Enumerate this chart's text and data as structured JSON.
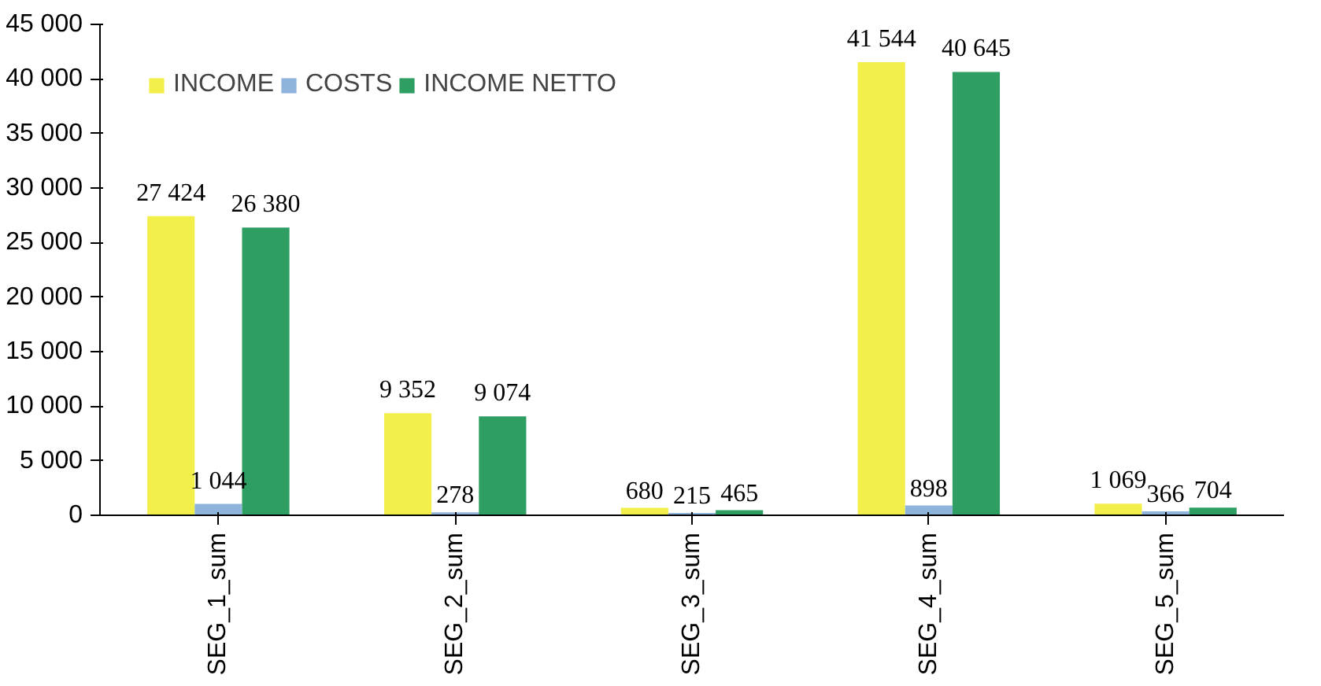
{
  "chart_data": {
    "type": "bar",
    "categories": [
      "SEG_1_sum",
      "SEG_2_sum",
      "SEG_3_sum",
      "SEG_4_sum",
      "SEG_5_sum"
    ],
    "series": [
      {
        "name": "INCOME",
        "color": "#f2ee4a",
        "values": [
          27424,
          9352,
          680,
          41544,
          1069
        ],
        "value_labels": [
          "27 424",
          "9 352",
          "680",
          "41 544",
          "1 069"
        ]
      },
      {
        "name": "COSTS",
        "color": "#8fb4dc",
        "values": [
          1044,
          278,
          215,
          898,
          366
        ],
        "value_labels": [
          "1 044",
          "278",
          "215",
          "898",
          "366"
        ]
      },
      {
        "name": "INCOME NETTO",
        "color": "#2e9e63",
        "values": [
          26380,
          9074,
          465,
          40645,
          704
        ],
        "value_labels": [
          "26 380",
          "9 074",
          "465",
          "40 645",
          "704"
        ]
      }
    ],
    "ylim": [
      0,
      45000
    ],
    "yticks": [
      {
        "value": 0,
        "label": "0"
      },
      {
        "value": 5000,
        "label": "5 000"
      },
      {
        "value": 10000,
        "label": "10 000"
      },
      {
        "value": 15000,
        "label": "15 000"
      },
      {
        "value": 20000,
        "label": "20 000"
      },
      {
        "value": 25000,
        "label": "25 000"
      },
      {
        "value": 30000,
        "label": "30 000"
      },
      {
        "value": 35000,
        "label": "35 000"
      },
      {
        "value": 40000,
        "label": "40 000"
      },
      {
        "value": 45000,
        "label": "45 000"
      }
    ],
    "grid": false,
    "legend": "top left"
  }
}
